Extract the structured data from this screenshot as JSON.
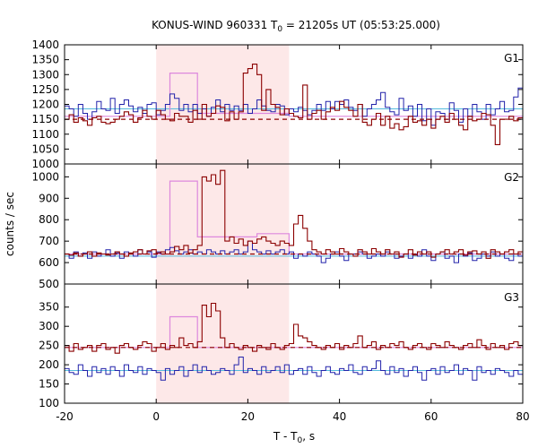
{
  "chart_data": {
    "type": "line",
    "title": "KONUS-WIND 960331 T",
    "title_sub": "0",
    "title_rest": " = 21205s UT (05:53:25.000)",
    "xlabel": "T - T",
    "xlabel_sub": "0",
    "xlabel_rest": ", s",
    "ylabel": "counts / sec",
    "xlim": [
      -20,
      80
    ],
    "xticks": [
      "-20",
      "0",
      "20",
      "40",
      "60",
      "80"
    ],
    "shaded_interval": [
      0,
      29
    ],
    "colors": {
      "red": "#8b0000",
      "blue": "#2222aa",
      "pink": "#dd88dd",
      "cyan": "#55bbdd",
      "shade": "#fde8e8"
    },
    "panels": [
      {
        "label": "G1",
        "ylim": [
          1000,
          1400
        ],
        "yticks": [
          "1000",
          "1050",
          "1100",
          "1150",
          "1200",
          "1250",
          "1300",
          "1350",
          "1400"
        ],
        "red_background": 1150,
        "blue_background": 1185,
        "red_series": [
          1150,
          1165,
          1140,
          1155,
          1145,
          1130,
          1155,
          1160,
          1140,
          1135,
          1140,
          1150,
          1160,
          1175,
          1165,
          1140,
          1155,
          1180,
          1160,
          1150,
          1180,
          1165,
          1150,
          1145,
          1170,
          1160,
          1160,
          1140,
          1180,
          1150,
          1200,
          1160,
          1170,
          1195,
          1190,
          1145,
          1175,
          1150,
          1175,
          1305,
          1320,
          1335,
          1300,
          1180,
          1250,
          1200,
          1190,
          1165,
          1185,
          1170,
          1160,
          1155,
          1265,
          1150,
          1170,
          1180,
          1150,
          1175,
          1190,
          1180,
          1210,
          1190,
          1180,
          1160,
          1200,
          1140,
          1130,
          1150,
          1170,
          1130,
          1160,
          1120,
          1135,
          1115,
          1125,
          1160,
          1140,
          1145,
          1130,
          1150,
          1120,
          1150,
          1160,
          1140,
          1170,
          1150,
          1130,
          1115,
          1160,
          1145,
          1150,
          1170,
          1165,
          1130,
          1065,
          1150,
          1150,
          1160,
          1145,
          1155
        ],
        "blue_series": [
          1195,
          1185,
          1160,
          1200,
          1170,
          1150,
          1175,
          1210,
          1185,
          1180,
          1220,
          1170,
          1200,
          1215,
          1195,
          1175,
          1190,
          1170,
          1200,
          1205,
          1165,
          1180,
          1200,
          1235,
          1220,
          1180,
          1200,
          1175,
          1200,
          1170,
          1185,
          1160,
          1190,
          1215,
          1175,
          1200,
          1180,
          1195,
          1180,
          1200,
          1170,
          1185,
          1215,
          1195,
          1180,
          1175,
          1200,
          1195,
          1165,
          1185,
          1175,
          1190,
          1180,
          1165,
          1180,
          1200,
          1180,
          1210,
          1185,
          1210,
          1200,
          1215,
          1190,
          1180,
          1200,
          1160,
          1185,
          1200,
          1215,
          1240,
          1190,
          1175,
          1165,
          1220,
          1180,
          1195,
          1160,
          1200,
          1145,
          1185,
          1130,
          1175,
          1170,
          1150,
          1205,
          1180,
          1140,
          1185,
          1160,
          1200,
          1175,
          1150,
          1200,
          1165,
          1185,
          1210,
          1175,
          1180,
          1225,
          1255
        ],
        "pink_steps": [
          [
            -20,
            0,
            1160
          ],
          [
            0,
            3,
            1160
          ],
          [
            3,
            9,
            1305
          ],
          [
            9,
            29,
            1170
          ],
          [
            29,
            80,
            1160
          ]
        ]
      },
      {
        "label": "G2",
        "ylim": [
          500,
          1060
        ],
        "yticks": [
          "500",
          "600",
          "700",
          "800",
          "900",
          "1000"
        ],
        "red_background": 640,
        "blue_background": 630,
        "red_series": [
          640,
          635,
          645,
          630,
          640,
          650,
          630,
          645,
          640,
          635,
          640,
          650,
          640,
          630,
          645,
          650,
          660,
          640,
          655,
          660,
          645,
          650,
          640,
          650,
          675,
          660,
          680,
          645,
          660,
          680,
          1000,
          980,
          1010,
          965,
          1030,
          700,
          720,
          690,
          710,
          680,
          700,
          690,
          710,
          720,
          700,
          690,
          680,
          700,
          690,
          680,
          780,
          820,
          760,
          700,
          660,
          650,
          640,
          660,
          650,
          640,
          665,
          650,
          640,
          630,
          660,
          650,
          640,
          665,
          650,
          640,
          660,
          640,
          650,
          625,
          640,
          660,
          635,
          650,
          640,
          650,
          625,
          640,
          650,
          660,
          640,
          650,
          660,
          635,
          650,
          655,
          640,
          650,
          620,
          660,
          650,
          640,
          650,
          660,
          640,
          650
        ],
        "blue_series": [
          640,
          620,
          650,
          630,
          645,
          620,
          650,
          630,
          640,
          660,
          630,
          645,
          620,
          650,
          640,
          630,
          660,
          640,
          650,
          625,
          650,
          640,
          660,
          670,
          655,
          640,
          650,
          660,
          640,
          650,
          640,
          660,
          650,
          640,
          655,
          640,
          650,
          660,
          640,
          650,
          700,
          660,
          650,
          640,
          655,
          640,
          650,
          660,
          640,
          650,
          620,
          640,
          630,
          650,
          640,
          630,
          600,
          620,
          640,
          650,
          630,
          610,
          640,
          640,
          650,
          640,
          620,
          630,
          640,
          630,
          650,
          640,
          620,
          630,
          640,
          620,
          640,
          630,
          660,
          630,
          610,
          640,
          650,
          620,
          630,
          600,
          640,
          630,
          645,
          610,
          620,
          640,
          630,
          650,
          630,
          640,
          620,
          610,
          640,
          630
        ],
        "pink_steps": [
          [
            -20,
            0,
            640
          ],
          [
            0,
            3,
            640
          ],
          [
            3,
            9,
            980
          ],
          [
            9,
            22,
            720
          ],
          [
            22,
            29,
            735
          ],
          [
            29,
            80,
            640
          ]
        ]
      },
      {
        "label": "G3",
        "ylim": [
          100,
          410
        ],
        "yticks": [
          "100",
          "150",
          "200",
          "250",
          "300",
          "350"
        ],
        "red_background": 245,
        "blue_background": 185,
        "red_series": [
          250,
          235,
          255,
          240,
          245,
          250,
          235,
          250,
          255,
          240,
          245,
          230,
          250,
          255,
          245,
          240,
          250,
          260,
          255,
          235,
          245,
          255,
          240,
          250,
          245,
          270,
          250,
          255,
          245,
          260,
          355,
          325,
          360,
          340,
          270,
          245,
          255,
          245,
          240,
          250,
          245,
          235,
          250,
          245,
          240,
          255,
          245,
          240,
          250,
          255,
          305,
          275,
          270,
          260,
          250,
          245,
          240,
          250,
          245,
          255,
          240,
          250,
          245,
          255,
          275,
          245,
          250,
          260,
          240,
          250,
          245,
          255,
          250,
          260,
          245,
          240,
          250,
          255,
          245,
          240,
          255,
          250,
          245,
          260,
          250,
          245,
          240,
          250,
          255,
          245,
          265,
          250,
          240,
          255,
          245,
          250,
          240,
          255,
          260,
          250
        ],
        "blue_series": [
          190,
          180,
          175,
          200,
          185,
          170,
          195,
          180,
          190,
          175,
          195,
          185,
          170,
          200,
          185,
          180,
          195,
          175,
          190,
          185,
          180,
          160,
          190,
          175,
          185,
          195,
          170,
          185,
          200,
          180,
          195,
          185,
          175,
          180,
          190,
          185,
          175,
          200,
          220,
          180,
          190,
          185,
          175,
          195,
          180,
          185,
          195,
          180,
          200,
          175,
          185,
          190,
          175,
          195,
          180,
          170,
          185,
          195,
          180,
          175,
          190,
          185,
          200,
          180,
          175,
          195,
          185,
          190,
          210,
          185,
          175,
          195,
          180,
          190,
          170,
          185,
          195,
          180,
          160,
          185,
          190,
          175,
          195,
          180,
          185,
          200,
          175,
          190,
          185,
          160,
          195,
          180,
          185,
          175,
          190,
          185,
          180,
          170,
          185,
          175
        ],
        "pink_steps": [
          [
            -20,
            0,
            245
          ],
          [
            0,
            3,
            245
          ],
          [
            3,
            9,
            325
          ],
          [
            9,
            29,
            245
          ],
          [
            29,
            80,
            245
          ]
        ]
      }
    ]
  }
}
